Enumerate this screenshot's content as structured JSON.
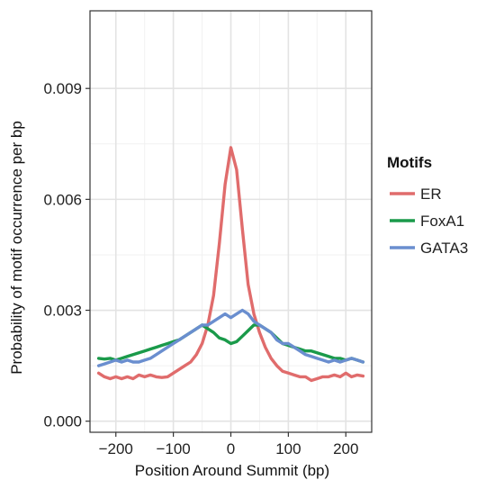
{
  "chart_data": {
    "type": "line",
    "title": "",
    "xlabel": "Position Around Summit (bp)",
    "ylabel": "Probability of motif occurrence per bp",
    "xlim": [
      -245,
      245
    ],
    "ylim": [
      -0.0003,
      0.0111
    ],
    "x_ticks": [
      -200,
      -100,
      0,
      100,
      200
    ],
    "x_tick_labels": [
      "−200",
      "−100",
      "0",
      "100",
      "200"
    ],
    "y_ticks": [
      0.0,
      0.003,
      0.006,
      0.009
    ],
    "y_tick_labels": [
      "0.000",
      "0.003",
      "0.006",
      "0.009"
    ],
    "grid": true,
    "legend_position": "right",
    "legend_title": "Motifs",
    "x": [
      -230,
      -220,
      -210,
      -200,
      -190,
      -180,
      -170,
      -160,
      -150,
      -140,
      -130,
      -120,
      -110,
      -100,
      -90,
      -80,
      -70,
      -60,
      -50,
      -40,
      -30,
      -20,
      -10,
      0,
      10,
      20,
      30,
      40,
      50,
      60,
      70,
      80,
      90,
      100,
      110,
      120,
      130,
      140,
      150,
      160,
      170,
      180,
      190,
      200,
      210,
      220,
      230
    ],
    "series": [
      {
        "name": "ER",
        "color": "#e06c6c",
        "values": [
          0.0013,
          0.0012,
          0.00115,
          0.0012,
          0.00115,
          0.0012,
          0.00115,
          0.00125,
          0.0012,
          0.00125,
          0.0012,
          0.00118,
          0.0012,
          0.0013,
          0.0014,
          0.0015,
          0.0016,
          0.0018,
          0.0021,
          0.0026,
          0.0034,
          0.0048,
          0.0064,
          0.0074,
          0.0068,
          0.0052,
          0.0037,
          0.0029,
          0.0024,
          0.002,
          0.0017,
          0.0015,
          0.00135,
          0.0013,
          0.00125,
          0.0012,
          0.0012,
          0.0011,
          0.00115,
          0.0012,
          0.0012,
          0.00125,
          0.0012,
          0.0013,
          0.0012,
          0.00125,
          0.00122
        ]
      },
      {
        "name": "FoxA1",
        "color": "#1a9a4a",
        "values": [
          0.0017,
          0.00168,
          0.0017,
          0.00165,
          0.0017,
          0.00175,
          0.0018,
          0.00185,
          0.0019,
          0.00195,
          0.002,
          0.00205,
          0.0021,
          0.00215,
          0.0022,
          0.0023,
          0.0024,
          0.0025,
          0.0026,
          0.0025,
          0.0024,
          0.00225,
          0.0022,
          0.0021,
          0.00215,
          0.0023,
          0.00245,
          0.0026,
          0.0026,
          0.0025,
          0.0024,
          0.00225,
          0.0021,
          0.00205,
          0.002,
          0.00195,
          0.0019,
          0.0019,
          0.00185,
          0.0018,
          0.00175,
          0.0017,
          0.0017,
          0.00165,
          0.0017,
          0.00165,
          0.0016
        ]
      },
      {
        "name": "GATA3",
        "color": "#6a8ecf",
        "values": [
          0.0015,
          0.00155,
          0.0016,
          0.00165,
          0.0016,
          0.00165,
          0.0016,
          0.0016,
          0.00165,
          0.0017,
          0.0018,
          0.0019,
          0.002,
          0.0021,
          0.0022,
          0.0023,
          0.0024,
          0.0025,
          0.0026,
          0.0026,
          0.0027,
          0.0028,
          0.0029,
          0.0028,
          0.0029,
          0.003,
          0.0029,
          0.0027,
          0.0026,
          0.0025,
          0.0024,
          0.0022,
          0.0021,
          0.0021,
          0.002,
          0.0019,
          0.0018,
          0.00175,
          0.0017,
          0.00165,
          0.0016,
          0.00165,
          0.0016,
          0.00165,
          0.0017,
          0.00165,
          0.0016
        ]
      }
    ]
  }
}
